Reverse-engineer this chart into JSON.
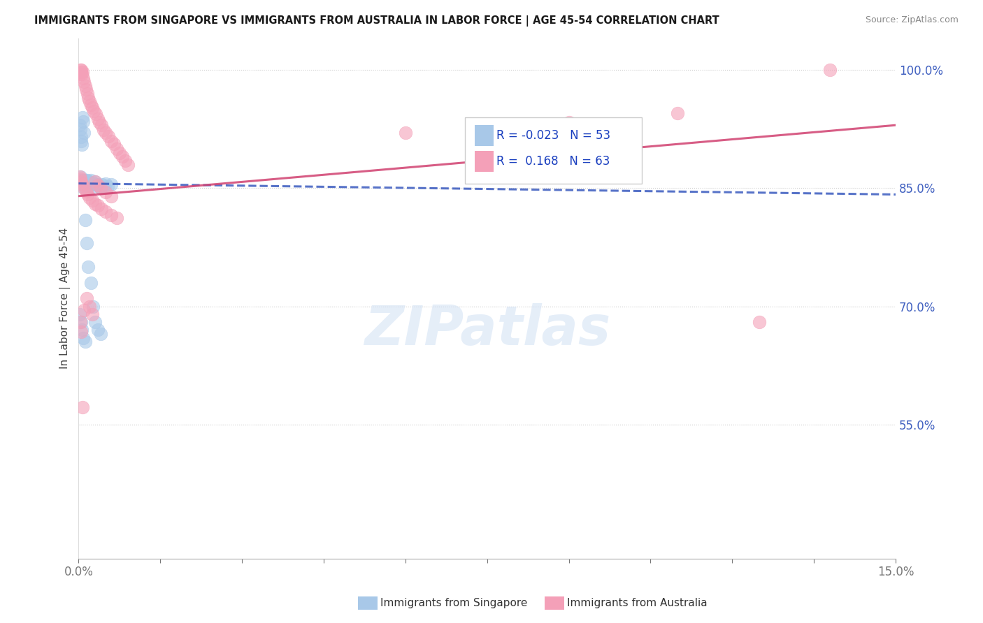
{
  "title": "IMMIGRANTS FROM SINGAPORE VS IMMIGRANTS FROM AUSTRALIA IN LABOR FORCE | AGE 45-54 CORRELATION CHART",
  "source": "Source: ZipAtlas.com",
  "ylabel": "In Labor Force | Age 45-54",
  "xlim": [
    0.0,
    0.15
  ],
  "ylim": [
    0.38,
    1.04
  ],
  "yticks_right": [
    0.55,
    0.7,
    0.85,
    1.0
  ],
  "ytick_labels_right": [
    "55.0%",
    "70.0%",
    "85.0%",
    "100.0%"
  ],
  "legend_r_singapore": "-0.023",
  "legend_n_singapore": "53",
  "legend_r_australia": "0.168",
  "legend_n_australia": "63",
  "singapore_color": "#a8c8e8",
  "australia_color": "#f4a0b8",
  "trend_singapore_color": "#3a5abf",
  "trend_australia_color": "#d04070",
  "sg_trend_x0": 0.0,
  "sg_trend_y0": 0.856,
  "sg_trend_x1": 0.15,
  "sg_trend_y1": 0.842,
  "au_trend_x0": 0.0,
  "au_trend_y0": 0.84,
  "au_trend_x1": 0.15,
  "au_trend_y1": 0.93,
  "singapore_x": [
    0.0002,
    0.0003,
    0.0004,
    0.0005,
    0.0006,
    0.0007,
    0.0008,
    0.0009,
    0.001,
    0.0011,
    0.0012,
    0.0013,
    0.0014,
    0.0015,
    0.0016,
    0.0017,
    0.0018,
    0.002,
    0.0022,
    0.0024,
    0.0026,
    0.0028,
    0.003,
    0.0032,
    0.0035,
    0.0038,
    0.004,
    0.0043,
    0.0046,
    0.005,
    0.0054,
    0.006,
    0.0002,
    0.0003,
    0.0004,
    0.0005,
    0.0006,
    0.0007,
    0.0008,
    0.001,
    0.0012,
    0.0015,
    0.0018,
    0.0022,
    0.0026,
    0.003,
    0.0035,
    0.004,
    0.0002,
    0.0004,
    0.0006,
    0.0008,
    0.0012
  ],
  "singapore_y": [
    0.86,
    0.865,
    0.858,
    0.855,
    0.852,
    0.86,
    0.856,
    0.858,
    0.86,
    0.855,
    0.85,
    0.86,
    0.855,
    0.858,
    0.86,
    0.856,
    0.852,
    0.858,
    0.86,
    0.855,
    0.852,
    0.856,
    0.858,
    0.855,
    0.855,
    0.852,
    0.85,
    0.855,
    0.853,
    0.856,
    0.852,
    0.855,
    0.93,
    0.925,
    0.915,
    0.91,
    0.905,
    0.94,
    0.935,
    0.92,
    0.81,
    0.78,
    0.75,
    0.73,
    0.7,
    0.68,
    0.67,
    0.665,
    0.69,
    0.68,
    0.67,
    0.66,
    0.655
  ],
  "australia_x": [
    0.0002,
    0.0003,
    0.0004,
    0.0005,
    0.0006,
    0.0007,
    0.0008,
    0.001,
    0.0012,
    0.0014,
    0.0016,
    0.0018,
    0.002,
    0.0022,
    0.0025,
    0.0028,
    0.0031,
    0.0035,
    0.0038,
    0.0042,
    0.0046,
    0.005,
    0.0055,
    0.006,
    0.0065,
    0.007,
    0.0075,
    0.008,
    0.0085,
    0.009,
    0.0002,
    0.0003,
    0.0005,
    0.0007,
    0.001,
    0.0013,
    0.0016,
    0.002,
    0.0025,
    0.003,
    0.0036,
    0.0042,
    0.005,
    0.006,
    0.007,
    0.003,
    0.0035,
    0.004,
    0.005,
    0.006,
    0.06,
    0.075,
    0.09,
    0.11,
    0.125,
    0.138,
    0.0003,
    0.0005,
    0.0007,
    0.001,
    0.0015,
    0.002,
    0.0025
  ],
  "australia_y": [
    0.995,
    1.0,
    0.998,
    1.0,
    0.995,
    0.998,
    0.99,
    0.985,
    0.98,
    0.975,
    0.97,
    0.965,
    0.96,
    0.956,
    0.952,
    0.948,
    0.944,
    0.938,
    0.934,
    0.93,
    0.924,
    0.92,
    0.916,
    0.91,
    0.906,
    0.9,
    0.895,
    0.89,
    0.885,
    0.88,
    0.865,
    0.862,
    0.858,
    0.855,
    0.85,
    0.846,
    0.842,
    0.838,
    0.834,
    0.83,
    0.828,
    0.824,
    0.82,
    0.816,
    0.812,
    0.858,
    0.854,
    0.85,
    0.845,
    0.84,
    0.92,
    0.928,
    0.934,
    0.945,
    0.68,
    1.0,
    0.68,
    0.668,
    0.572,
    0.695,
    0.71,
    0.7,
    0.69
  ],
  "watermark_text": "ZIPatlas",
  "background_color": "#ffffff",
  "grid_color": "#cccccc",
  "tick_color": "#777777",
  "right_axis_color": "#4060c0"
}
